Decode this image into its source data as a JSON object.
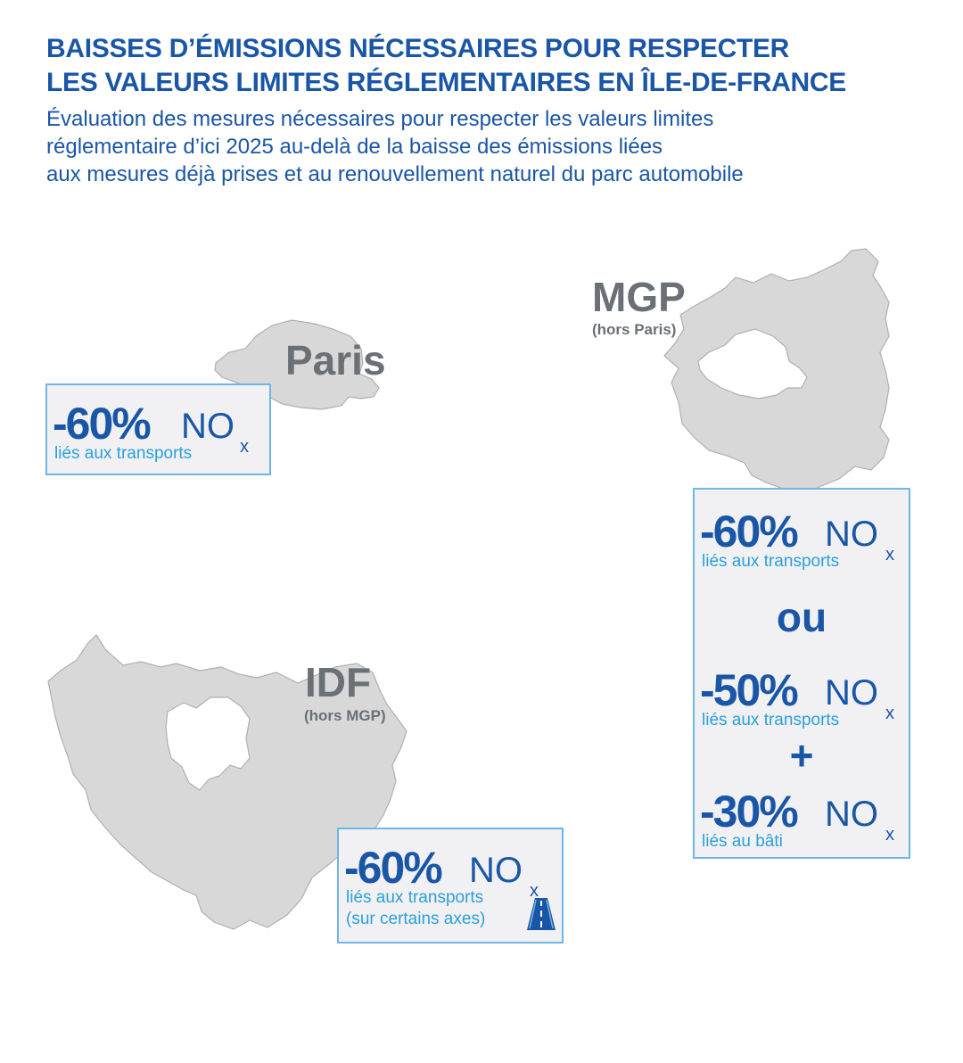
{
  "title": {
    "line1": "BAISSES D’ÉMISSIONS NÉCESSAIRES POUR RESPECTER",
    "line2": "LES VALEURS LIMITES RÉGLEMENTAIRES EN ÎLE-DE-FRANCE"
  },
  "subtitle": {
    "line1": "Évaluation des mesures nécessaires pour respecter les valeurs limites",
    "line2": "réglementaire d’ici 2025 au-delà de la baisse des émissions liées",
    "line3": "aux mesures déjà prises et au renouvellement naturel du parc automobile"
  },
  "colors": {
    "title": "#1a56a6",
    "accent_light": "#2b9fdb",
    "map_fill": "#d8d8d8",
    "box_bg": "#f1f1f3",
    "box_border": "#6fb6e6",
    "region_label": "#6b7077"
  },
  "paris": {
    "label": "Paris",
    "stat": {
      "pct": "-60%",
      "gas": "NO",
      "gas_sub": "x",
      "desc": "liés aux transports"
    }
  },
  "mgp": {
    "label": "MGP",
    "sub": "(hors Paris)",
    "stat1": {
      "pct": "-60%",
      "gas": "NO",
      "gas_sub": "x",
      "desc": "liés aux transports"
    },
    "or_label": "ou",
    "stat2": {
      "pct": "-50%",
      "gas": "NO",
      "gas_sub": "x",
      "desc": "liés aux transports"
    },
    "plus_label": "+",
    "stat3": {
      "pct": "-30%",
      "gas": "NO",
      "gas_sub": "x",
      "desc": "liés au bâti"
    }
  },
  "idf": {
    "label": "IDF",
    "sub": "(hors MGP)",
    "stat": {
      "pct": "-60%",
      "gas": "NO",
      "gas_sub": "x",
      "desc": "liés aux transports",
      "desc2": "(sur certains axes)",
      "icon": "road-icon"
    }
  }
}
